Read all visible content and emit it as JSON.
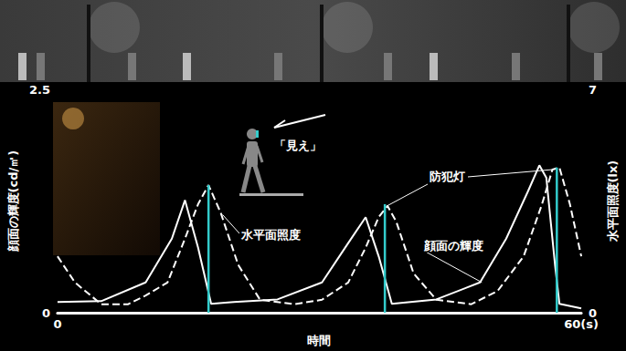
{
  "chart_data": {
    "type": "line",
    "x_label": "時間",
    "y_label": "顔面の輝度(cd/㎡)",
    "y2_label": "水平面照度(lx)",
    "xlim": [
      0,
      60
    ],
    "xticks": [
      0,
      {
        "value": 60,
        "label": "60(s)"
      }
    ],
    "ylim": [
      0,
      2.5
    ],
    "yticks": [
      0,
      2.5
    ],
    "y2lim": [
      0,
      7
    ],
    "y2ticks": [
      0,
      7
    ],
    "grid": false,
    "series": [
      {
        "name": "顔面の輝度",
        "color": "#ffffff",
        "line_style": "solid",
        "x": [
          0,
          5.0,
          10.1,
          13.1,
          14.6,
          16.1,
          17.6,
          20.2,
          25.2,
          30.3,
          33.3,
          35.3,
          36.8,
          38.3,
          43.4,
          48.4,
          51.4,
          53.9,
          55.2,
          56.0,
          57.0,
          57.5,
          60
        ],
        "values": [
          0.12,
          0.13,
          0.34,
          0.83,
          1.26,
          0.73,
          0.1,
          0.12,
          0.15,
          0.34,
          0.78,
          1.07,
          0.63,
          0.1,
          0.15,
          0.34,
          0.83,
          1.36,
          1.65,
          1.51,
          0.53,
          0.1,
          0.05
        ]
      },
      {
        "name": "水平面照度",
        "color": "#ffffff",
        "line_style": "dashed",
        "axis": "y2",
        "x": [
          0,
          2.0,
          5.0,
          8.1,
          10.1,
          12.6,
          14.6,
          16.1,
          17.3,
          18.7,
          20.7,
          23.2,
          27.2,
          30.3,
          33.3,
          35.3,
          36.8,
          37.8,
          38.8,
          40.8,
          43.4,
          47.4,
          50.4,
          53.4,
          55.5,
          56.7,
          57.5,
          58.7,
          60
        ],
        "values": [
          1.77,
          0.95,
          0.27,
          0.27,
          0.54,
          0.95,
          2.32,
          3.4,
          4.0,
          3.13,
          1.5,
          0.41,
          0.27,
          0.41,
          0.95,
          2.04,
          3.0,
          3.35,
          2.86,
          1.23,
          0.41,
          0.27,
          0.68,
          1.77,
          3.4,
          4.49,
          4.55,
          3.4,
          1.77
        ]
      }
    ],
    "street_lights": {
      "name": "防犯灯",
      "color": "#33cccc",
      "axis": "y2",
      "x": [
        17.3,
        37.5,
        57.2
      ],
      "values": [
        4.0,
        3.4,
        4.55
      ]
    },
    "annotations": [
      "「見え」"
    ]
  }
}
